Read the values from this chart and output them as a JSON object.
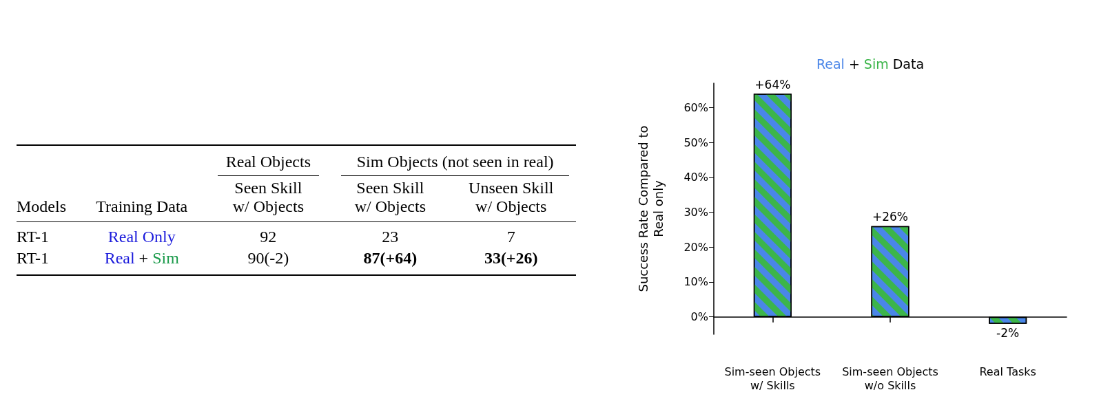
{
  "chart_data": [
    {
      "type": "other",
      "annotations": [
        "Real Objects",
        "Sim Objects (not seen in real)",
        "Models",
        "Training Data",
        "Seen Skill\nw/ Objects",
        "Seen Skill\nw/ Objects",
        "Unseen Skill\nw/ Objects",
        "RT-1",
        "Real Only",
        "92",
        "23",
        "7",
        "RT-1",
        "Real + Sim",
        "90(-2)",
        "87(+64)",
        "33(+26)"
      ]
    },
    {
      "type": "bar",
      "title": "Real + Sim Data",
      "ylabel": "Success Rate Compared to\nReal only",
      "categories": [
        "Sim-seen Objects\nw/ Skills",
        "Sim-seen Objects\nw/o Skills",
        "Real Tasks"
      ],
      "series": [
        {
          "color": "#4a86e8",
          "values": [
            64,
            26,
            -2
          ],
          "value_labels": [
            "+64%",
            "+26%",
            "-2%"
          ]
        }
      ],
      "ylim": [
        -5,
        67
      ],
      "yticks": [
        {
          "value": 0,
          "label": "0%"
        },
        {
          "value": 10,
          "label": "10%"
        },
        {
          "value": 20,
          "label": "20%"
        },
        {
          "value": 30,
          "label": "30%"
        },
        {
          "value": 40,
          "label": "40%"
        },
        {
          "value": 50,
          "label": "50%"
        },
        {
          "value": 60,
          "label": "60%"
        }
      ]
    }
  ]
}
